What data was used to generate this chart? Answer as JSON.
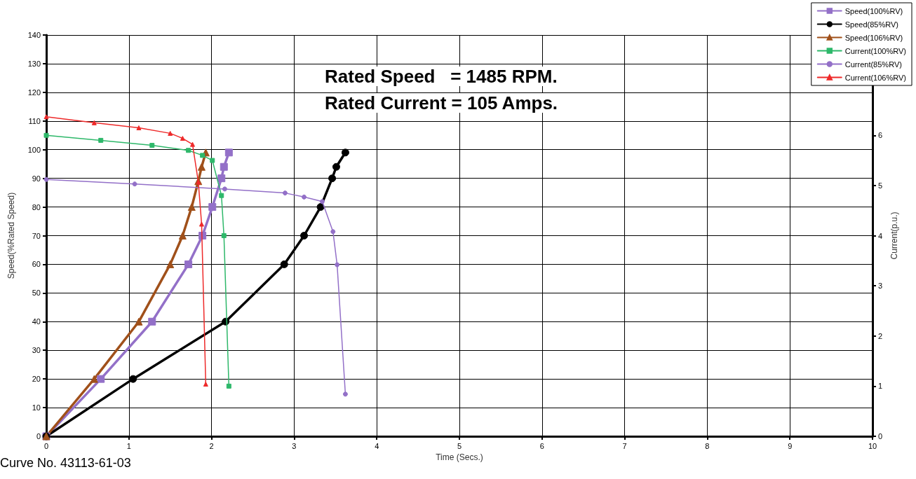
{
  "chart_data": {
    "type": "line",
    "annotations": [
      "Rated Speed   = 1485 RPM.",
      "Rated Current = 105 Amps.",
      "Curve No. 43113-61-03"
    ],
    "xlabel": "Time (Secs.)",
    "ylabel": "Speed(%Rated Speed)",
    "y2label": "Current(p.u.)",
    "xlim": [
      0,
      10
    ],
    "xticks": [
      0,
      1,
      2,
      3,
      4,
      5,
      6,
      7,
      8,
      9,
      10
    ],
    "ylim": [
      0,
      140
    ],
    "yticks": [
      0,
      10,
      20,
      30,
      40,
      50,
      60,
      70,
      80,
      90,
      100,
      110,
      120,
      130,
      140
    ],
    "y2lim": [
      0,
      8
    ],
    "y2ticks": [
      0,
      1,
      2,
      3,
      4,
      5,
      6
    ],
    "grid": true,
    "legend": "top right",
    "line_style": "solid",
    "series": [
      {
        "name": "Speed(100%RV)",
        "color": "#9370c8",
        "marker": "square",
        "x": [
          0,
          0.66,
          1.28,
          1.72,
          1.89,
          2.01,
          2.12,
          2.15,
          2.21
        ],
        "values": [
          0,
          20,
          40,
          60,
          70,
          80,
          90,
          94,
          99
        ]
      },
      {
        "name": "Speed(85%RV)",
        "color": "#000000",
        "marker": "circle",
        "x": [
          0,
          1.05,
          2.17,
          2.88,
          3.12,
          3.32,
          3.46,
          3.51,
          3.62
        ],
        "values": [
          0,
          20,
          40,
          60,
          70,
          80,
          90,
          94,
          99
        ]
      },
      {
        "name": "Speed(106%RV)",
        "color": "#a0501a",
        "marker": "triangle",
        "x": [
          0,
          0.58,
          1.12,
          1.5,
          1.65,
          1.76,
          1.84,
          1.88,
          1.93
        ],
        "values": [
          0,
          20,
          40,
          60,
          70,
          80,
          89,
          94,
          99
        ]
      },
      {
        "name": "Current(100%RV)",
        "color": "#2eb86a",
        "marker": "square",
        "axis": "y2",
        "x": [
          0,
          0.66,
          1.28,
          1.72,
          1.89,
          2.01,
          2.12,
          2.15,
          2.21
        ],
        "values": [
          6.0,
          5.9,
          5.8,
          5.7,
          5.6,
          5.5,
          4.8,
          4.0,
          1.0
        ]
      },
      {
        "name": "Current(85%RV)",
        "color": "#9370c8",
        "marker": "circle",
        "axis": "y2",
        "x": [
          0,
          1.07,
          2.16,
          2.89,
          3.12,
          3.34,
          3.47,
          3.52,
          3.62
        ],
        "values": [
          5.12,
          5.03,
          4.93,
          4.85,
          4.77,
          4.68,
          4.08,
          3.42,
          0.84
        ]
      },
      {
        "name": "Current(106%RV)",
        "color": "#ee2a2a",
        "marker": "triangle",
        "axis": "y2",
        "x": [
          0,
          0.58,
          1.12,
          1.5,
          1.65,
          1.77,
          1.84,
          1.88,
          1.93
        ],
        "values": [
          6.37,
          6.25,
          6.15,
          6.04,
          5.94,
          5.82,
          5.07,
          4.23,
          1.04
        ]
      }
    ]
  }
}
